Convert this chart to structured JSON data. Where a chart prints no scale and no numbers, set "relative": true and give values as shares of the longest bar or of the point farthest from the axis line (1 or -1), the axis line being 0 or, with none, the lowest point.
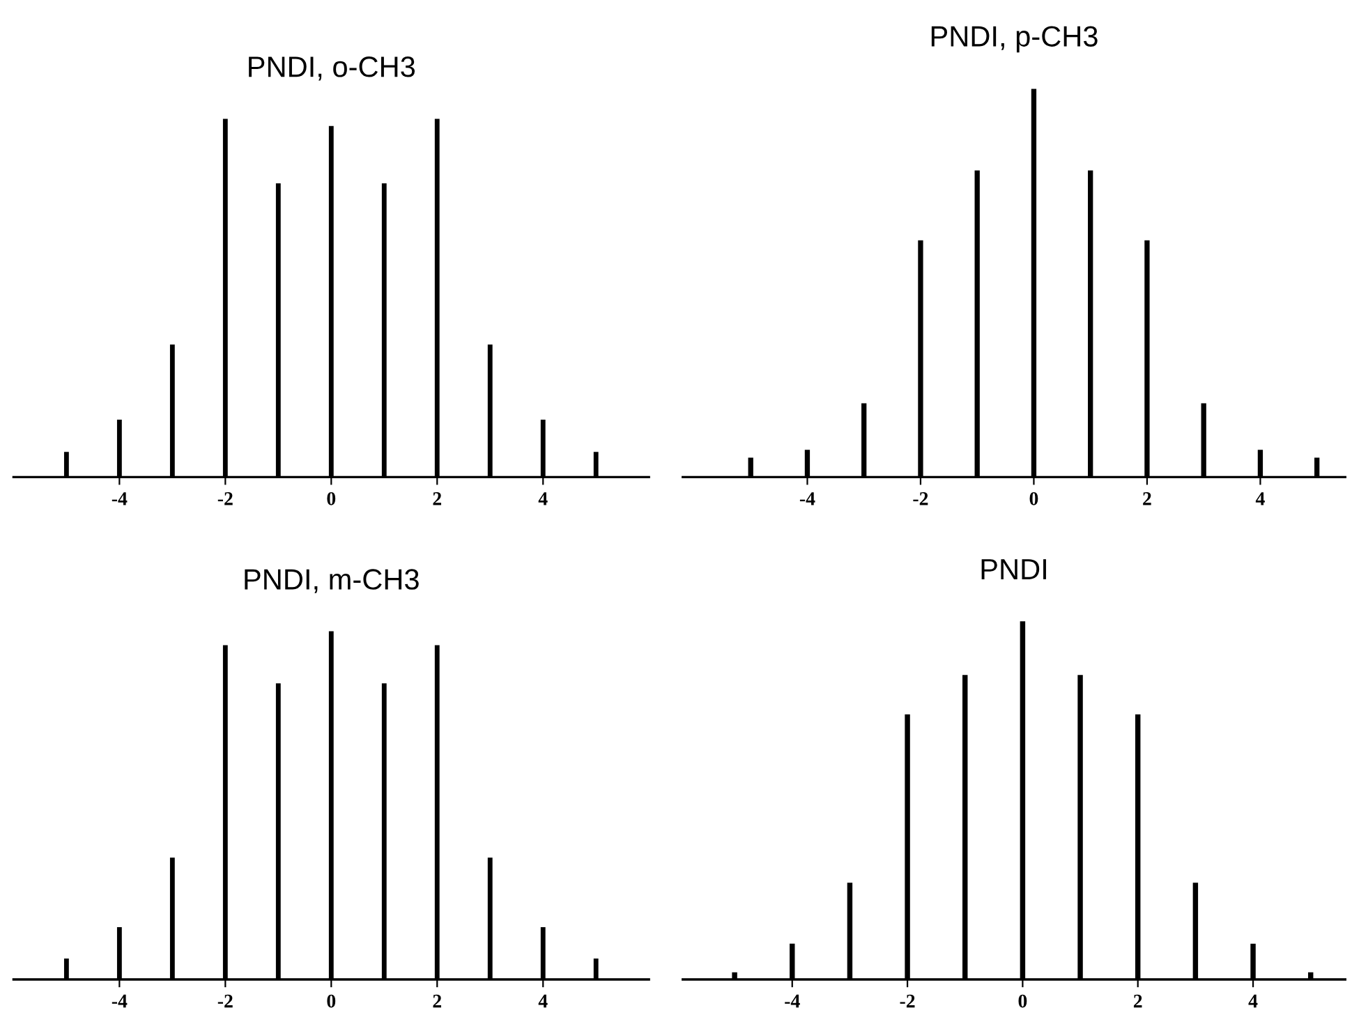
{
  "chart_data": [
    {
      "type": "bar",
      "title": "PNDI, o-CH3",
      "relative": true,
      "tick_labels": "x",
      "color": "#000000",
      "x": [
        -5,
        -4,
        -3,
        -2,
        -1,
        0,
        1,
        2,
        3,
        4,
        5
      ],
      "values": [
        0.07,
        0.16,
        0.37,
        1,
        0.82,
        0.98,
        0.82,
        1,
        0.37,
        0.16,
        0.07
      ],
      "xlim": [
        -6,
        6
      ],
      "xticks": [
        -4,
        -2,
        0,
        2,
        4
      ]
    },
    {
      "type": "bar",
      "title": "PNDI, p-CH3",
      "relative": true,
      "tick_labels": "x",
      "color": "#000000",
      "x": [
        -5,
        -4,
        -3,
        -2,
        -1,
        0,
        1,
        2,
        3,
        4,
        5
      ],
      "values": [
        0.05,
        0.07,
        0.19,
        0.61,
        0.79,
        1,
        0.79,
        0.61,
        0.19,
        0.07,
        0.05
      ],
      "xlim": [
        -6.2,
        5.5
      ],
      "xticks": [
        -4,
        -2,
        0,
        2,
        4
      ]
    },
    {
      "type": "bar",
      "title": "PNDI, m-CH3",
      "relative": true,
      "tick_labels": "x",
      "color": "#000000",
      "x": [
        -5,
        -4,
        -3,
        -2,
        -1,
        0,
        1,
        2,
        3,
        4,
        5
      ],
      "values": [
        0.06,
        0.15,
        0.35,
        0.96,
        0.85,
        1,
        0.85,
        0.96,
        0.35,
        0.15,
        0.06
      ],
      "xlim": [
        -6,
        6
      ],
      "xticks": [
        -4,
        -2,
        0,
        2,
        4
      ]
    },
    {
      "type": "bar",
      "title": "PNDI",
      "relative": true,
      "tick_labels": "x",
      "color": "#000000",
      "x": [
        -5,
        -4,
        -3,
        -2,
        -1,
        0,
        1,
        2,
        3,
        4,
        5
      ],
      "values": [
        0.02,
        0.1,
        0.27,
        0.74,
        0.85,
        1,
        0.85,
        0.74,
        0.27,
        0.1,
        0.02
      ],
      "xlim": [
        -5.9,
        5.6
      ],
      "xticks": [
        -4,
        -2,
        0,
        2,
        4
      ]
    }
  ]
}
